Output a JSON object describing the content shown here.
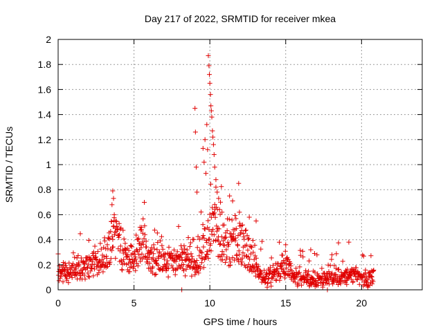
{
  "chart_data": {
    "type": "scatter",
    "title": "Day 217 of 2022, SRMTID for receiver mkea",
    "xlabel": "GPS time / hours",
    "ylabel": "SRMTID / TECUs",
    "xlim": [
      0,
      24
    ],
    "ylim": [
      0,
      2
    ],
    "xticks": [
      0,
      5,
      10,
      15,
      20
    ],
    "yticks": [
      0,
      0.2,
      0.4,
      0.6,
      0.8,
      1,
      1.2,
      1.4,
      1.6,
      1.8,
      2
    ],
    "xtick_labels": [
      "0",
      "5",
      "10",
      "15",
      "20"
    ],
    "ytick_labels": [
      "0",
      "0.2",
      "0.4",
      "0.6",
      "0.8",
      "1",
      "1.2",
      "1.4",
      "1.6",
      "1.8",
      "2"
    ],
    "grid": true,
    "marker": "+",
    "marker_color": "#e00000",
    "series": [
      {
        "name": "SRMTID",
        "x_range": [
          0,
          20.8
        ],
        "sample_step_hours": 0.02,
        "baseline_profile": [
          [
            0.0,
            0.12
          ],
          [
            0.5,
            0.14
          ],
          [
            1.0,
            0.16
          ],
          [
            1.5,
            0.17
          ],
          [
            2.0,
            0.18
          ],
          [
            2.5,
            0.22
          ],
          [
            3.0,
            0.27
          ],
          [
            3.3,
            0.3
          ],
          [
            3.6,
            0.45
          ],
          [
            4.0,
            0.38
          ],
          [
            4.3,
            0.28
          ],
          [
            4.7,
            0.22
          ],
          [
            5.2,
            0.32
          ],
          [
            5.6,
            0.4
          ],
          [
            6.0,
            0.22
          ],
          [
            6.5,
            0.24
          ],
          [
            7.0,
            0.23
          ],
          [
            7.5,
            0.22
          ],
          [
            8.0,
            0.24
          ],
          [
            8.5,
            0.22
          ],
          [
            9.0,
            0.2
          ],
          [
            9.5,
            0.28
          ],
          [
            10.0,
            0.45
          ],
          [
            10.4,
            0.5
          ],
          [
            10.8,
            0.4
          ],
          [
            11.2,
            0.3
          ],
          [
            11.6,
            0.38
          ],
          [
            12.0,
            0.35
          ],
          [
            12.4,
            0.34
          ],
          [
            12.8,
            0.22
          ],
          [
            13.2,
            0.13
          ],
          [
            13.6,
            0.1
          ],
          [
            14.0,
            0.1
          ],
          [
            14.6,
            0.16
          ],
          [
            15.0,
            0.2
          ],
          [
            15.5,
            0.12
          ],
          [
            16.0,
            0.11
          ],
          [
            16.5,
            0.09
          ],
          [
            17.0,
            0.08
          ],
          [
            17.5,
            0.07
          ],
          [
            18.0,
            0.1
          ],
          [
            18.5,
            0.12
          ],
          [
            19.0,
            0.1
          ],
          [
            19.5,
            0.12
          ],
          [
            20.0,
            0.1
          ],
          [
            20.8,
            0.1
          ]
        ],
        "highlight_points": [
          [
            9.02,
            1.45
          ],
          [
            9.05,
            1.26
          ],
          [
            9.1,
            0.98
          ],
          [
            9.15,
            0.78
          ],
          [
            9.55,
            1.13
          ],
          [
            9.62,
            1.02
          ],
          [
            9.68,
            1.2
          ],
          [
            9.74,
            0.93
          ],
          [
            9.8,
            1.32
          ],
          [
            9.85,
            1.12
          ],
          [
            9.9,
            1.87
          ],
          [
            9.94,
            1.79
          ],
          [
            9.97,
            1.72
          ],
          [
            10.0,
            1.65
          ],
          [
            10.04,
            1.56
          ],
          [
            10.07,
            1.47
          ],
          [
            10.1,
            1.43
          ],
          [
            10.13,
            1.38
          ],
          [
            10.17,
            1.27
          ],
          [
            10.2,
            1.22
          ],
          [
            10.24,
            1.16
          ],
          [
            10.28,
            1.08
          ],
          [
            10.32,
            0.98
          ],
          [
            10.4,
            0.88
          ],
          [
            10.48,
            0.78
          ],
          [
            10.58,
            0.73
          ],
          [
            10.7,
            0.7
          ],
          [
            11.9,
            0.85
          ],
          [
            11.95,
            0.62
          ],
          [
            3.6,
            0.79
          ],
          [
            3.65,
            0.73
          ],
          [
            3.55,
            0.68
          ],
          [
            3.7,
            0.6
          ],
          [
            8.15,
            0.0
          ],
          [
            17.75,
            0.0
          ],
          [
            18.05,
            0.28
          ],
          [
            5.4,
            0.5
          ],
          [
            5.5,
            0.48
          ],
          [
            10.8,
            0.62
          ],
          [
            11.3,
            0.75
          ],
          [
            11.5,
            0.71
          ],
          [
            12.6,
            0.58
          ],
          [
            13.05,
            0.55
          ],
          [
            15.0,
            0.36
          ],
          [
            16.65,
            0.32
          ]
        ]
      }
    ]
  }
}
